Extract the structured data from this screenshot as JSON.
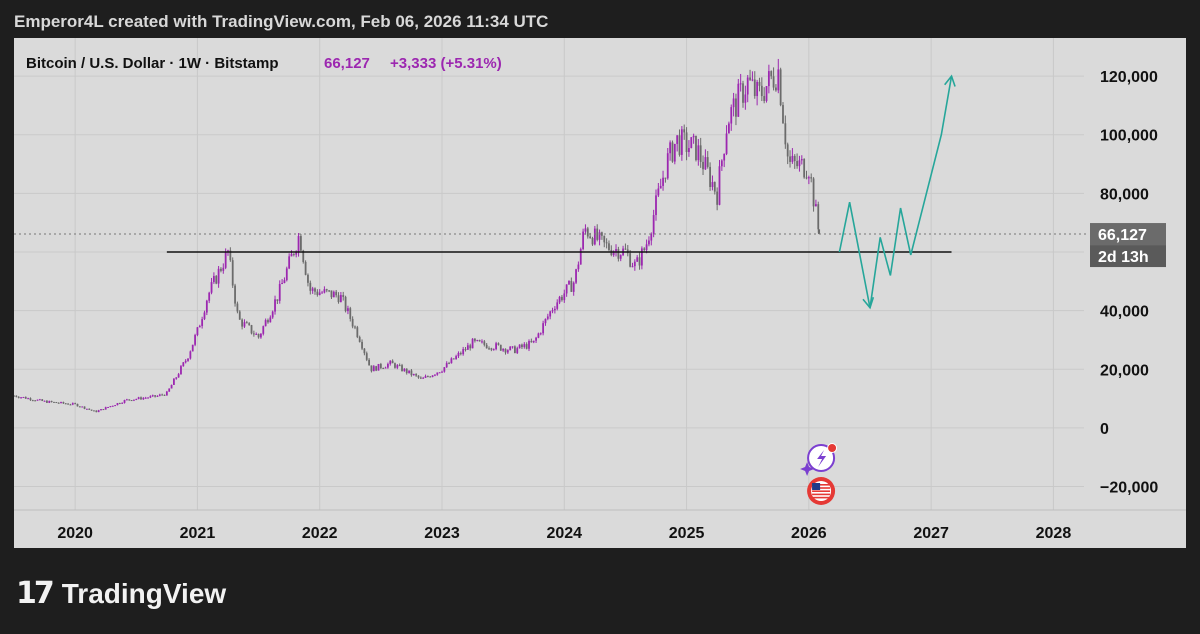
{
  "header": {
    "attribution": "Emperor4L created with TradingView.com, Feb 06, 2026 11:34 UTC"
  },
  "legend": {
    "symbol": "Bitcoin / U.S. Dollar · 1W · Bitstamp",
    "last": "66,127",
    "change": "+3,333 (+5.31%)"
  },
  "price_tag": {
    "price": "66,127",
    "countdown": "2d 13h"
  },
  "footer": {
    "logo_mark": "17",
    "brand": "TradingView"
  },
  "colors": {
    "up": "#9c27b0",
    "down": "#6b6b6b",
    "projection": "#26a69a",
    "support": "#111111",
    "axis_text": "#111111"
  },
  "chart_data": {
    "type": "line",
    "title": "Bitcoin / U.S. Dollar · 1W · Bitstamp",
    "xlabel": "",
    "ylabel": "",
    "x_ticks": [
      "2020",
      "2021",
      "2022",
      "2023",
      "2024",
      "2025",
      "2026",
      "2027",
      "2028"
    ],
    "y_ticks": [
      "120,000",
      "100,000",
      "80,000",
      "60,000",
      "40,000",
      "20,000",
      "0",
      "−20,000"
    ],
    "y_tick_values": [
      120000,
      100000,
      80000,
      60000,
      40000,
      20000,
      0,
      -20000
    ],
    "ylim": [
      -28000,
      133000
    ],
    "xlim": [
      "2019-07",
      "2028-04"
    ],
    "grid": true,
    "series": [
      {
        "name": "",
        "x": [
          "2019-07",
          "2019-10",
          "2020-01",
          "2020-03",
          "2020-06",
          "2020-09",
          "2020-10",
          "2020-12",
          "2021-01",
          "2021-02",
          "2021-04",
          "2021-05",
          "2021-07",
          "2021-09",
          "2021-11",
          "2021-12",
          "2022-03",
          "2022-05",
          "2022-06",
          "2022-08",
          "2022-11",
          "2023-01",
          "2023-04",
          "2023-06",
          "2023-08",
          "2023-10",
          "2023-12",
          "2024-02",
          "2024-03",
          "2024-05",
          "2024-07",
          "2024-08",
          "2024-09",
          "2024-11",
          "2024-12",
          "2025-02",
          "2025-04",
          "2025-05",
          "2025-07",
          "2025-08",
          "2025-10",
          "2025-11",
          "2026-01",
          "2026-02"
        ],
        "values": [
          11000,
          9000,
          8000,
          5500,
          9500,
          10800,
          11800,
          24000,
          33000,
          45000,
          60000,
          37000,
          31000,
          46000,
          66000,
          47000,
          45000,
          30000,
          20000,
          22000,
          16500,
          20000,
          29000,
          28000,
          26500,
          29000,
          42000,
          50000,
          68000,
          62000,
          60000,
          55000,
          62000,
          90000,
          98000,
          95000,
          80000,
          105000,
          118000,
          113000,
          122000,
          90000,
          89000,
          66127
        ]
      },
      {
        "name": "",
        "x": [
          "2026-04",
          "2026-05",
          "2026-07",
          "2026-08",
          "2026-09",
          "2026-10",
          "2026-11",
          "2027-02",
          "2027-03"
        ],
        "values": [
          60000,
          77000,
          41000,
          65000,
          52000,
          75000,
          59000,
          100000,
          120000
        ]
      }
    ],
    "support_level": 60000,
    "support_range": [
      "2020-10",
      "2027-03"
    ],
    "last_price": 66127
  }
}
